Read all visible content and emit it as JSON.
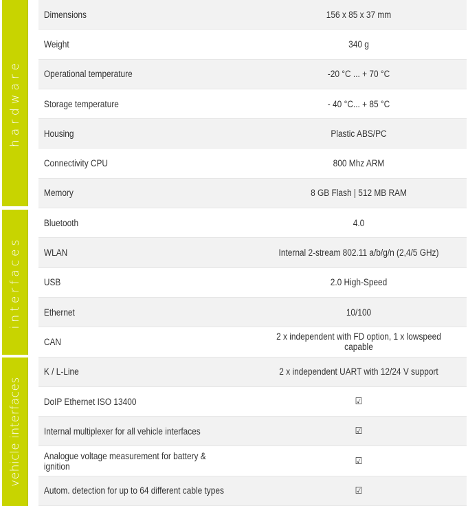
{
  "accent_color": "#c8d400",
  "groups": [
    "hardware",
    "interfaces",
    "vehicle interfaces"
  ],
  "rows": [
    {
      "label": "Dimensions",
      "value": "156 x 85 x 37 mm"
    },
    {
      "label": "Weight",
      "value": "340 g"
    },
    {
      "label": "Operational temperature",
      "value": "-20 °C ... + 70 °C"
    },
    {
      "label": "Storage temperature",
      "value": "- 40 °C... + 85 °C"
    },
    {
      "label": "Housing",
      "value": "Plastic ABS/PC"
    },
    {
      "label": "Connectivity CPU",
      "value": "800 Mhz ARM"
    },
    {
      "label": "Memory",
      "value": "8 GB Flash | 512 MB RAM"
    },
    {
      "label": "Bluetooth",
      "value": "4.0"
    },
    {
      "label": "WLAN",
      "value": "Internal 2-stream 802.11 a/b/g/n (2,4/5 GHz)"
    },
    {
      "label": "USB",
      "value": "2.0 High-Speed"
    },
    {
      "label": "Ethernet",
      "value": "10/100"
    },
    {
      "label": "CAN",
      "value": "2 x independent with FD option,  1 x lowspeed capable"
    },
    {
      "label": "K / L-Line",
      "value": "2 x independent UART with 12/24 V support"
    },
    {
      "label": "DoIP Ethernet ISO 13400",
      "value": "☑"
    },
    {
      "label": "Internal multiplexer for all vehicle interfaces",
      "value": "☑"
    },
    {
      "label": "Analogue voltage measurement for battery & ignition",
      "value": "☑"
    },
    {
      "label": "Autom. detection for up to 64 different cable types",
      "value": "☑"
    }
  ]
}
